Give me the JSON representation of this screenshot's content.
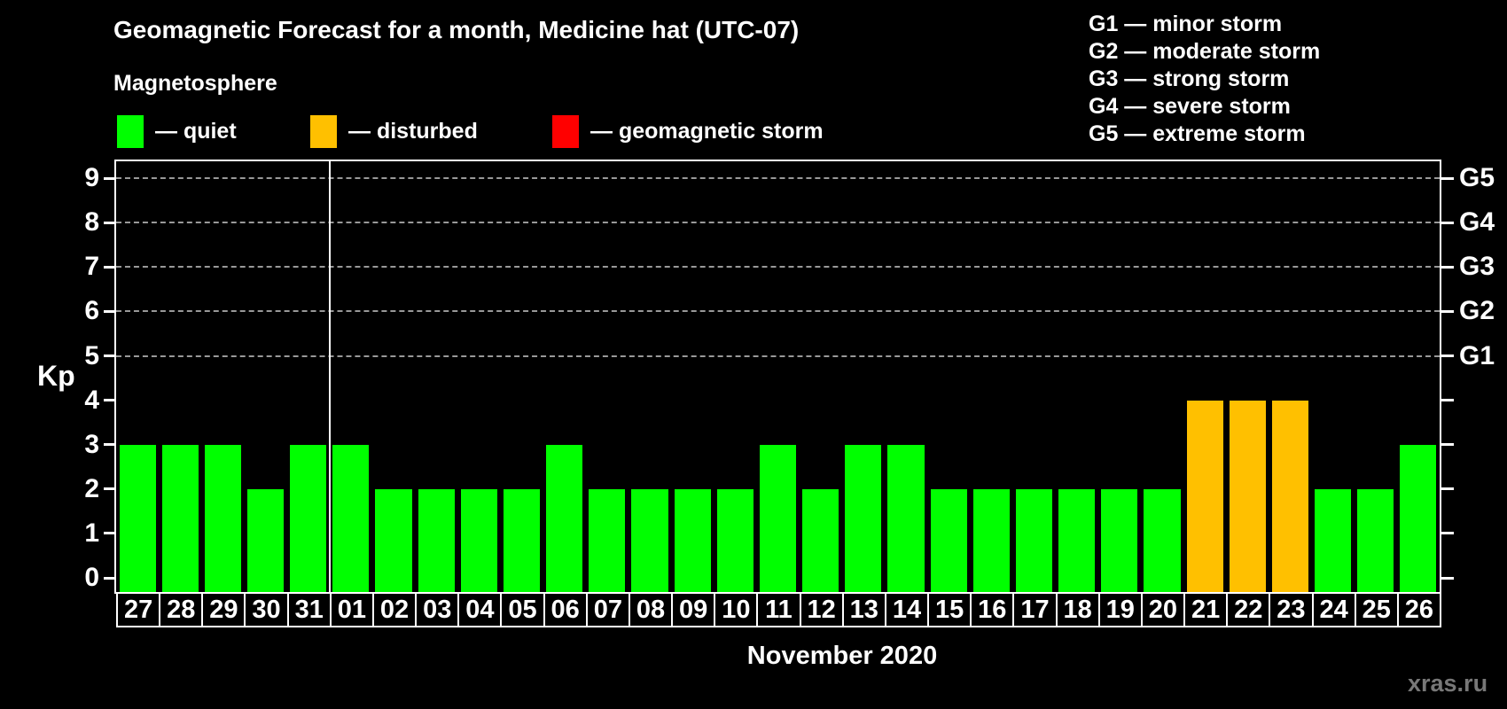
{
  "title": "Geomagnetic Forecast for a month, Medicine hat (UTC-07)",
  "subtitle": "Magnetosphere",
  "legend": {
    "items": [
      {
        "name": "quiet",
        "label": "— quiet",
        "color": "#00ff00"
      },
      {
        "name": "disturbed",
        "label": "— disturbed",
        "color": "#ffc000"
      },
      {
        "name": "storm",
        "label": "— geomagnetic storm",
        "color": "#ff0000"
      }
    ]
  },
  "storm_legend": [
    "G1 — minor storm",
    "G2 — moderate storm",
    "G3 — strong storm",
    "G4 — severe storm",
    "G5 — extreme storm"
  ],
  "watermark": "xras.ru",
  "chart_data": {
    "type": "bar",
    "title": "Geomagnetic Forecast for a month, Medicine hat (UTC-07)",
    "xlabel": "November 2020",
    "ylabel": "Kp",
    "ylim": [
      0,
      9
    ],
    "y_ticks": [
      0,
      1,
      2,
      3,
      4,
      5,
      6,
      7,
      8,
      9
    ],
    "grid": "dashed horizontal lines at Kp 5-9 only",
    "gridlines_at": [
      5,
      6,
      7,
      8,
      9
    ],
    "categories": [
      "27",
      "28",
      "29",
      "30",
      "31",
      "01",
      "02",
      "03",
      "04",
      "05",
      "06",
      "07",
      "08",
      "09",
      "10",
      "11",
      "12",
      "13",
      "14",
      "15",
      "16",
      "17",
      "18",
      "19",
      "20",
      "21",
      "22",
      "23",
      "24",
      "25",
      "26"
    ],
    "values": [
      3,
      3,
      3,
      2,
      3,
      3,
      2,
      2,
      2,
      2,
      3,
      2,
      2,
      2,
      2,
      3,
      2,
      3,
      3,
      2,
      2,
      2,
      2,
      2,
      2,
      4,
      4,
      4,
      2,
      2,
      3
    ],
    "bar_states": [
      "quiet",
      "quiet",
      "quiet",
      "quiet",
      "quiet",
      "quiet",
      "quiet",
      "quiet",
      "quiet",
      "quiet",
      "quiet",
      "quiet",
      "quiet",
      "quiet",
      "quiet",
      "quiet",
      "quiet",
      "quiet",
      "quiet",
      "quiet",
      "quiet",
      "quiet",
      "quiet",
      "quiet",
      "quiet",
      "disturbed",
      "disturbed",
      "disturbed",
      "quiet",
      "quiet",
      "quiet"
    ],
    "colors": {
      "quiet": "#00ff00",
      "disturbed": "#ffc000",
      "storm": "#ff0000"
    },
    "right_axis": [
      {
        "label": "G1",
        "kp": 5
      },
      {
        "label": "G2",
        "kp": 6
      },
      {
        "label": "G3",
        "kp": 7
      },
      {
        "label": "G4",
        "kp": 8
      },
      {
        "label": "G5",
        "kp": 9
      }
    ],
    "month_separator_after": "31",
    "legend_position": "top-left and top-right"
  }
}
